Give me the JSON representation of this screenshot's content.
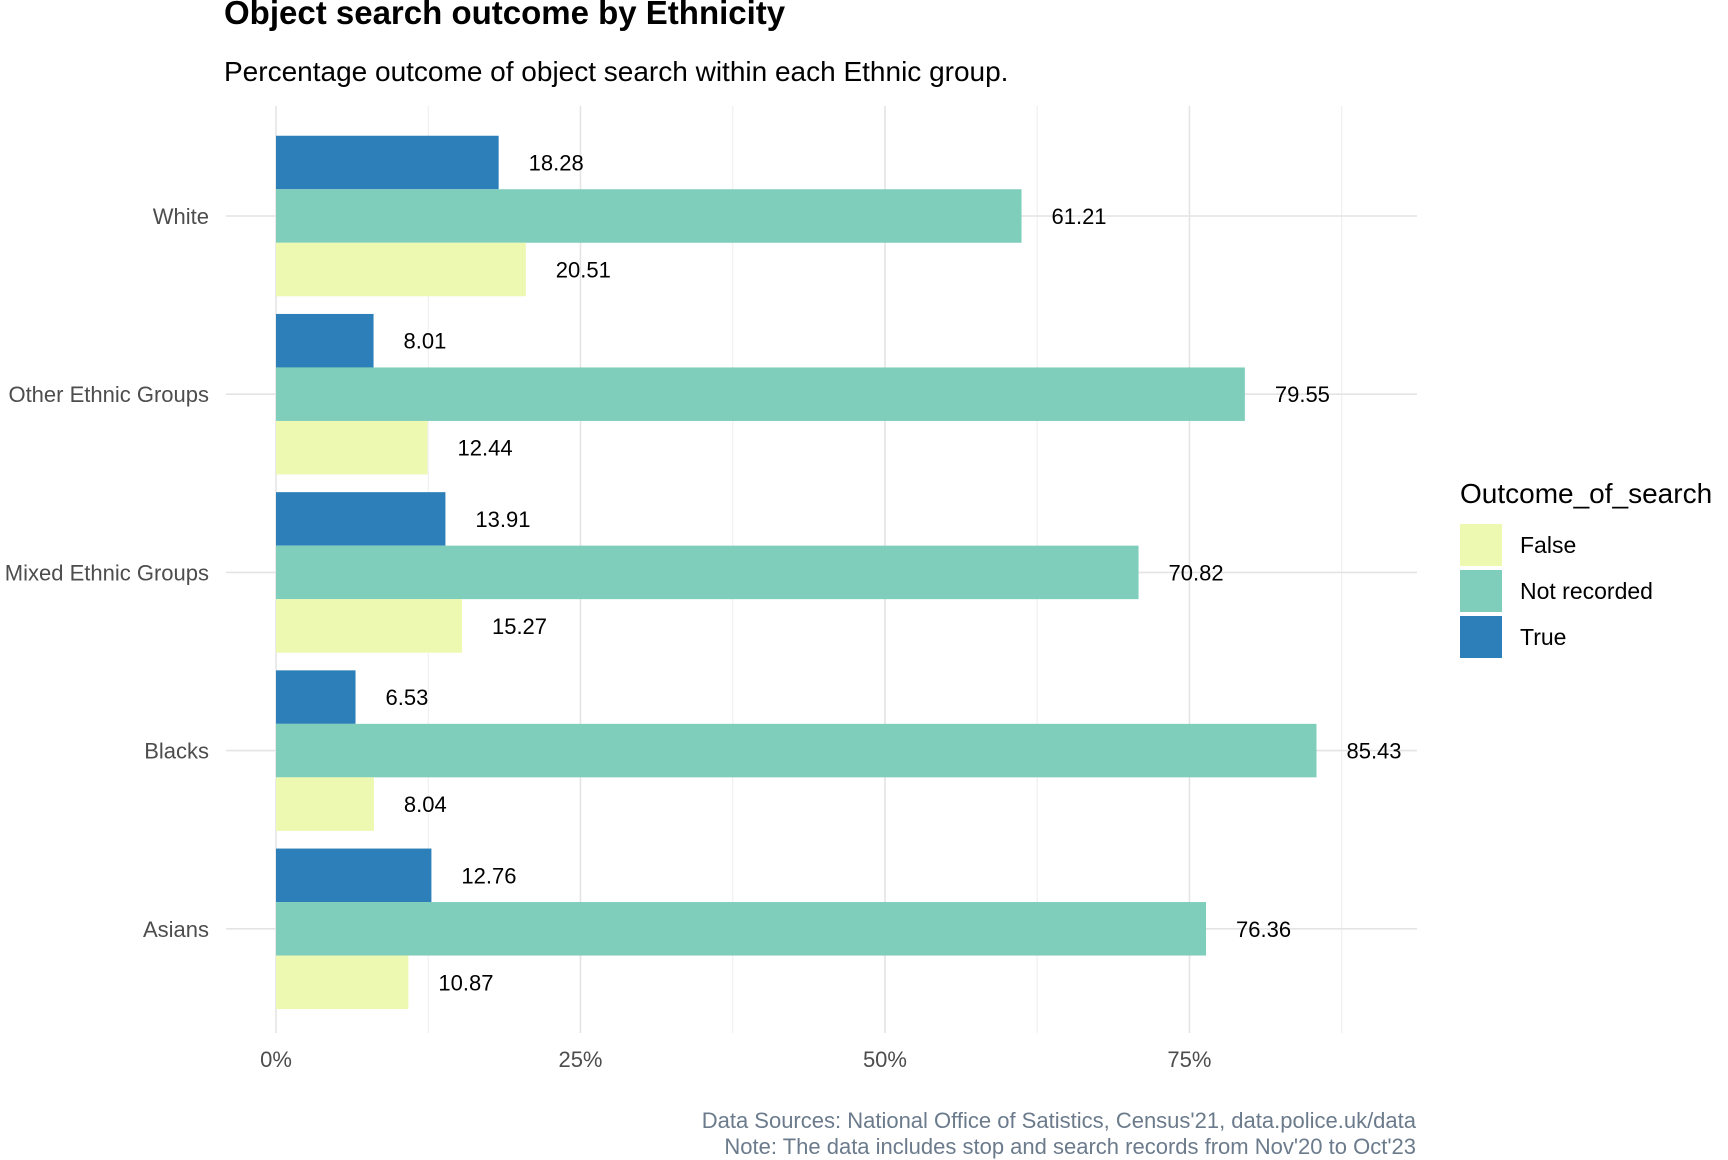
{
  "chart_data": {
    "type": "bar",
    "orientation": "horizontal",
    "title": "Object search outcome by Ethnicity",
    "subtitle": "Percentage outcome of object search within each Ethnic group.",
    "categories": [
      "White",
      "Other Ethnic Groups",
      "Mixed Ethnic Groups",
      "Blacks",
      "Asians"
    ],
    "series": [
      {
        "name": "True",
        "color": "#2c7fb8",
        "values": [
          18.28,
          8.01,
          13.91,
          6.53,
          12.76
        ]
      },
      {
        "name": "Not recorded",
        "color": "#7fcdbb",
        "values": [
          61.21,
          79.55,
          70.82,
          85.43,
          76.36
        ]
      },
      {
        "name": "False",
        "color": "#edf8b1",
        "values": [
          20.51,
          12.44,
          15.27,
          8.04,
          10.87
        ]
      }
    ],
    "xlim": [
      0,
      95
    ],
    "x_ticks": [
      0,
      25,
      50,
      75
    ],
    "x_tick_labels": [
      "0%",
      "25%",
      "50%",
      "75%"
    ],
    "grid": true,
    "legend": {
      "title": "Outcome_of_search",
      "position": "right",
      "entries": [
        {
          "label": "False",
          "color": "#edf8b1"
        },
        {
          "label": "Not recorded",
          "color": "#7fcdbb"
        },
        {
          "label": "True",
          "color": "#2c7fb8"
        }
      ]
    },
    "caption": [
      "Data Sources: National Office of Satistics, Census'21, data.police.uk/data",
      "Note: The data includes stop and search records from Nov'20 to Oct'23"
    ]
  }
}
